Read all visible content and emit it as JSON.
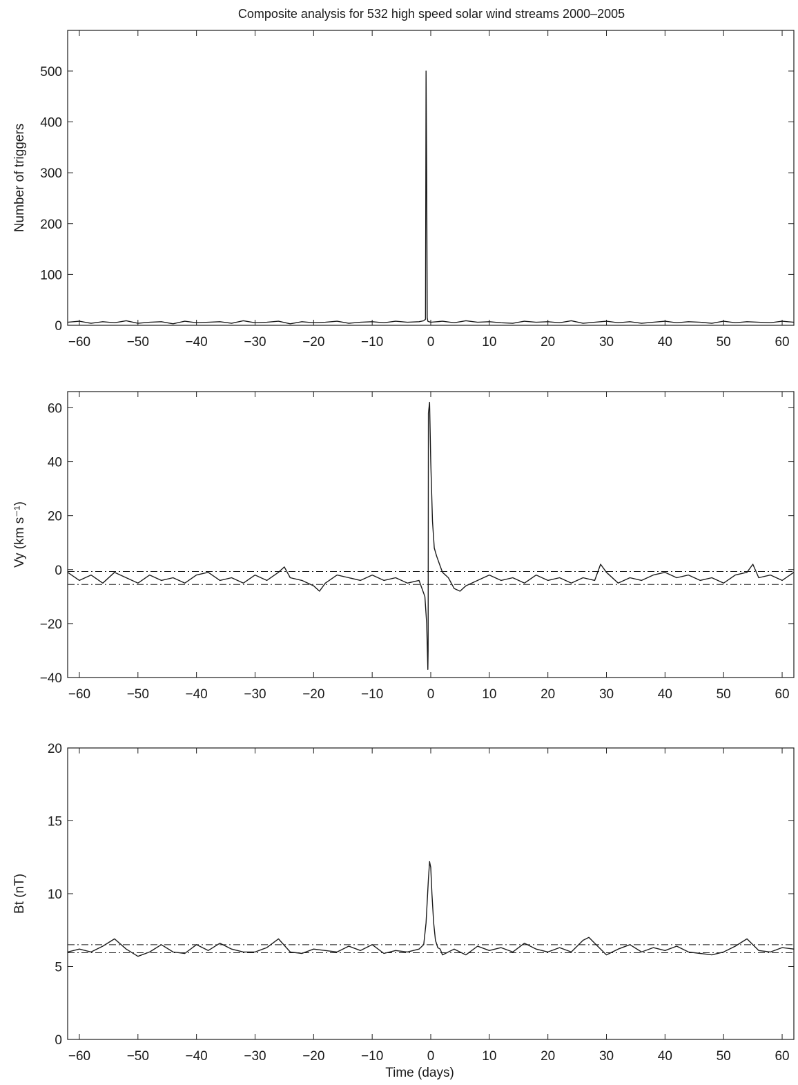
{
  "figure": {
    "title": "Composite analysis for 532 high speed solar wind streams 2000–2005",
    "line_color": "#1a1a1a"
  },
  "chart_data": [
    {
      "type": "line",
      "title": "Composite analysis for 532 high speed solar wind streams 2000–2005",
      "xlabel": "",
      "ylabel": "Number of triggers",
      "xlim": [
        -62,
        62
      ],
      "ylim": [
        0,
        580
      ],
      "xticks": [
        -60,
        -50,
        -40,
        -30,
        -20,
        -10,
        0,
        10,
        20,
        30,
        40,
        50,
        60
      ],
      "xtick_labels": [
        "−60",
        "−50",
        "−40",
        "−30",
        "−20",
        "−10",
        "0",
        "10",
        "20",
        "30",
        "40",
        "50",
        "60"
      ],
      "yticks": [
        0,
        100,
        200,
        300,
        400,
        500
      ],
      "ytick_labels": [
        "0",
        "100",
        "200",
        "300",
        "400",
        "500"
      ],
      "grid": false,
      "series": [
        {
          "x": [
            -62,
            -60,
            -58,
            -56,
            -54,
            -52,
            -50,
            -48,
            -46,
            -44,
            -42,
            -40,
            -38,
            -36,
            -34,
            -32,
            -30,
            -28,
            -26,
            -24,
            -22,
            -20,
            -18,
            -16,
            -14,
            -12,
            -10,
            -8,
            -6,
            -4,
            -2,
            -1.2,
            -0.9,
            -0.8,
            -0.7,
            -0.6,
            -0.5,
            -0.3,
            0,
            2,
            4,
            6,
            8,
            10,
            12,
            14,
            16,
            18,
            20,
            22,
            24,
            26,
            28,
            30,
            32,
            34,
            36,
            38,
            40,
            42,
            44,
            46,
            48,
            50,
            52,
            54,
            56,
            58,
            60,
            62
          ],
          "y": [
            6,
            8,
            4,
            7,
            5,
            9,
            4,
            6,
            7,
            3,
            8,
            5,
            6,
            7,
            4,
            9,
            5,
            6,
            8,
            3,
            7,
            5,
            6,
            8,
            4,
            6,
            7,
            5,
            8,
            6,
            7,
            9,
            12,
            500,
            300,
            15,
            8,
            7,
            6,
            8,
            5,
            9,
            6,
            7,
            5,
            4,
            8,
            6,
            7,
            5,
            9,
            4,
            6,
            8,
            5,
            7,
            4,
            6,
            8,
            5,
            7,
            6,
            4,
            8,
            5,
            7,
            6,
            5,
            8,
            6
          ]
        }
      ]
    },
    {
      "type": "line",
      "xlabel": "",
      "ylabel": "Vy (km s⁻¹)",
      "xlim": [
        -62,
        62
      ],
      "ylim": [
        -40,
        66
      ],
      "xticks": [
        -60,
        -50,
        -40,
        -30,
        -20,
        -10,
        0,
        10,
        20,
        30,
        40,
        50,
        60
      ],
      "xtick_labels": [
        "−60",
        "−50",
        "−40",
        "−30",
        "−20",
        "−10",
        "0",
        "10",
        "20",
        "30",
        "40",
        "50",
        "60"
      ],
      "yticks": [
        -40,
        -20,
        0,
        20,
        40,
        60
      ],
      "ytick_labels": [
        "−40",
        "−20",
        "0",
        "20",
        "40",
        "60"
      ],
      "grid": false,
      "reference_lines": [
        -0.7,
        -5.5
      ],
      "series": [
        {
          "x": [
            -62,
            -60,
            -58,
            -56,
            -54,
            -52,
            -50,
            -48,
            -46,
            -44,
            -42,
            -40,
            -38,
            -36,
            -34,
            -32,
            -30,
            -28,
            -26,
            -25,
            -24,
            -22,
            -20,
            -19,
            -18,
            -16,
            -14,
            -12,
            -10,
            -8,
            -6,
            -4,
            -2,
            -1.5,
            -1,
            -0.7,
            -0.5,
            -0.45,
            -0.4,
            -0.2,
            0,
            0.3,
            0.6,
            1,
            1.5,
            2,
            3,
            4,
            5,
            6,
            8,
            10,
            12,
            14,
            16,
            18,
            20,
            22,
            24,
            26,
            28,
            29,
            30,
            32,
            34,
            36,
            38,
            40,
            42,
            44,
            46,
            48,
            50,
            52,
            54,
            55,
            56,
            58,
            60,
            62
          ],
          "y": [
            -1,
            -4,
            -2,
            -5,
            -1,
            -3,
            -5,
            -2,
            -4,
            -3,
            -5,
            -2,
            -1,
            -4,
            -3,
            -5,
            -2,
            -4,
            -1,
            1,
            -3,
            -4,
            -6,
            -8,
            -5,
            -2,
            -3,
            -4,
            -2,
            -4,
            -3,
            -5,
            -4,
            -7,
            -10,
            -20,
            -37,
            -30,
            58,
            62,
            40,
            18,
            8,
            5,
            2,
            -1,
            -3,
            -7,
            -8,
            -6,
            -4,
            -2,
            -4,
            -3,
            -5,
            -2,
            -4,
            -3,
            -5,
            -3,
            -4,
            2,
            -1,
            -5,
            -3,
            -4,
            -2,
            -1,
            -3,
            -2,
            -4,
            -3,
            -5,
            -2,
            -1,
            2,
            -3,
            -2,
            -4,
            -1
          ]
        }
      ]
    },
    {
      "type": "line",
      "xlabel": "Time (days)",
      "ylabel": "Bt (nT)",
      "xlim": [
        -62,
        62
      ],
      "ylim": [
        0,
        20
      ],
      "xticks": [
        -60,
        -50,
        -40,
        -30,
        -20,
        -10,
        0,
        10,
        20,
        30,
        40,
        50,
        60
      ],
      "xtick_labels": [
        "−60",
        "−50",
        "−40",
        "−30",
        "−20",
        "−10",
        "0",
        "10",
        "20",
        "30",
        "40",
        "50",
        "60"
      ],
      "yticks": [
        0,
        5,
        10,
        15,
        20
      ],
      "ytick_labels": [
        "0",
        "5",
        "10",
        "15",
        "20"
      ],
      "grid": false,
      "reference_lines": [
        6.5,
        5.95
      ],
      "series": [
        {
          "x": [
            -62,
            -60,
            -58,
            -56,
            -54,
            -52,
            -50,
            -48,
            -46,
            -44,
            -42,
            -40,
            -38,
            -36,
            -34,
            -32,
            -30,
            -28,
            -26,
            -24,
            -22,
            -20,
            -18,
            -16,
            -14,
            -12,
            -10,
            -8,
            -6,
            -4,
            -2,
            -1.2,
            -0.8,
            -0.4,
            -0.2,
            0,
            0.2,
            0.5,
            0.8,
            1.2,
            1.6,
            2,
            4,
            6,
            8,
            10,
            12,
            14,
            16,
            18,
            20,
            22,
            24,
            26,
            27,
            28,
            30,
            32,
            34,
            36,
            38,
            40,
            42,
            44,
            46,
            48,
            50,
            52,
            54,
            56,
            58,
            60,
            62
          ],
          "y": [
            6.0,
            6.2,
            6.0,
            6.4,
            6.9,
            6.2,
            5.7,
            6.0,
            6.5,
            6.0,
            5.9,
            6.5,
            6.1,
            6.6,
            6.2,
            6.0,
            6.0,
            6.3,
            6.9,
            6.0,
            5.9,
            6.2,
            6.1,
            6.0,
            6.4,
            6.1,
            6.5,
            5.9,
            6.1,
            6.0,
            6.2,
            6.5,
            8.0,
            11.0,
            12.2,
            11.8,
            10.0,
            8.0,
            6.8,
            6.3,
            6.2,
            5.8,
            6.2,
            5.8,
            6.4,
            6.1,
            6.3,
            6.0,
            6.6,
            6.2,
            6.0,
            6.3,
            6.0,
            6.8,
            7.0,
            6.6,
            5.8,
            6.2,
            6.5,
            6.0,
            6.3,
            6.1,
            6.4,
            6.0,
            5.9,
            5.8,
            6.0,
            6.4,
            6.9,
            6.1,
            6.0,
            6.3,
            6.2
          ]
        }
      ]
    }
  ]
}
